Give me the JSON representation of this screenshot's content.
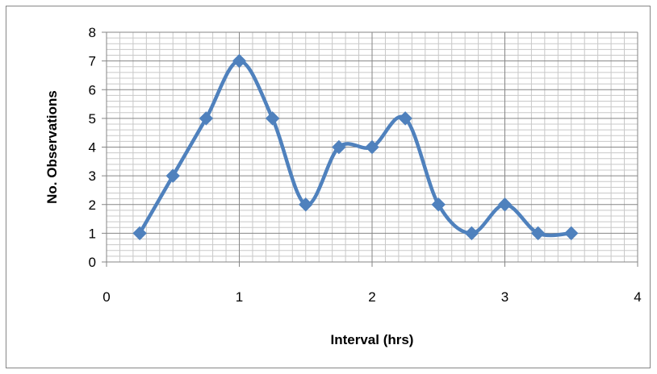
{
  "chart_data": {
    "type": "scatter",
    "title": "",
    "xlabel": "Interval (hrs)",
    "ylabel": "No. Observations",
    "xlim": [
      0,
      4
    ],
    "ylim": [
      0,
      8
    ],
    "x_ticks": [
      "0",
      "1",
      "2",
      "3",
      "4"
    ],
    "y_ticks": [
      "0",
      "1",
      "2",
      "3",
      "4",
      "5",
      "6",
      "7",
      "8"
    ],
    "x_minor_step": 0.1,
    "y_minor_step": 0.2,
    "grid": true,
    "smoothed_line": true,
    "marker": "diamond",
    "series_color": "#4f81bd",
    "series": [
      {
        "name": "",
        "x": [
          0.25,
          0.5,
          0.75,
          1.0,
          1.25,
          1.5,
          1.75,
          2.0,
          2.25,
          2.5,
          2.75,
          3.0,
          3.25,
          3.5
        ],
        "y": [
          1,
          3,
          5,
          7,
          5,
          2,
          4,
          4,
          5,
          2,
          1,
          2,
          1,
          1
        ]
      }
    ]
  }
}
